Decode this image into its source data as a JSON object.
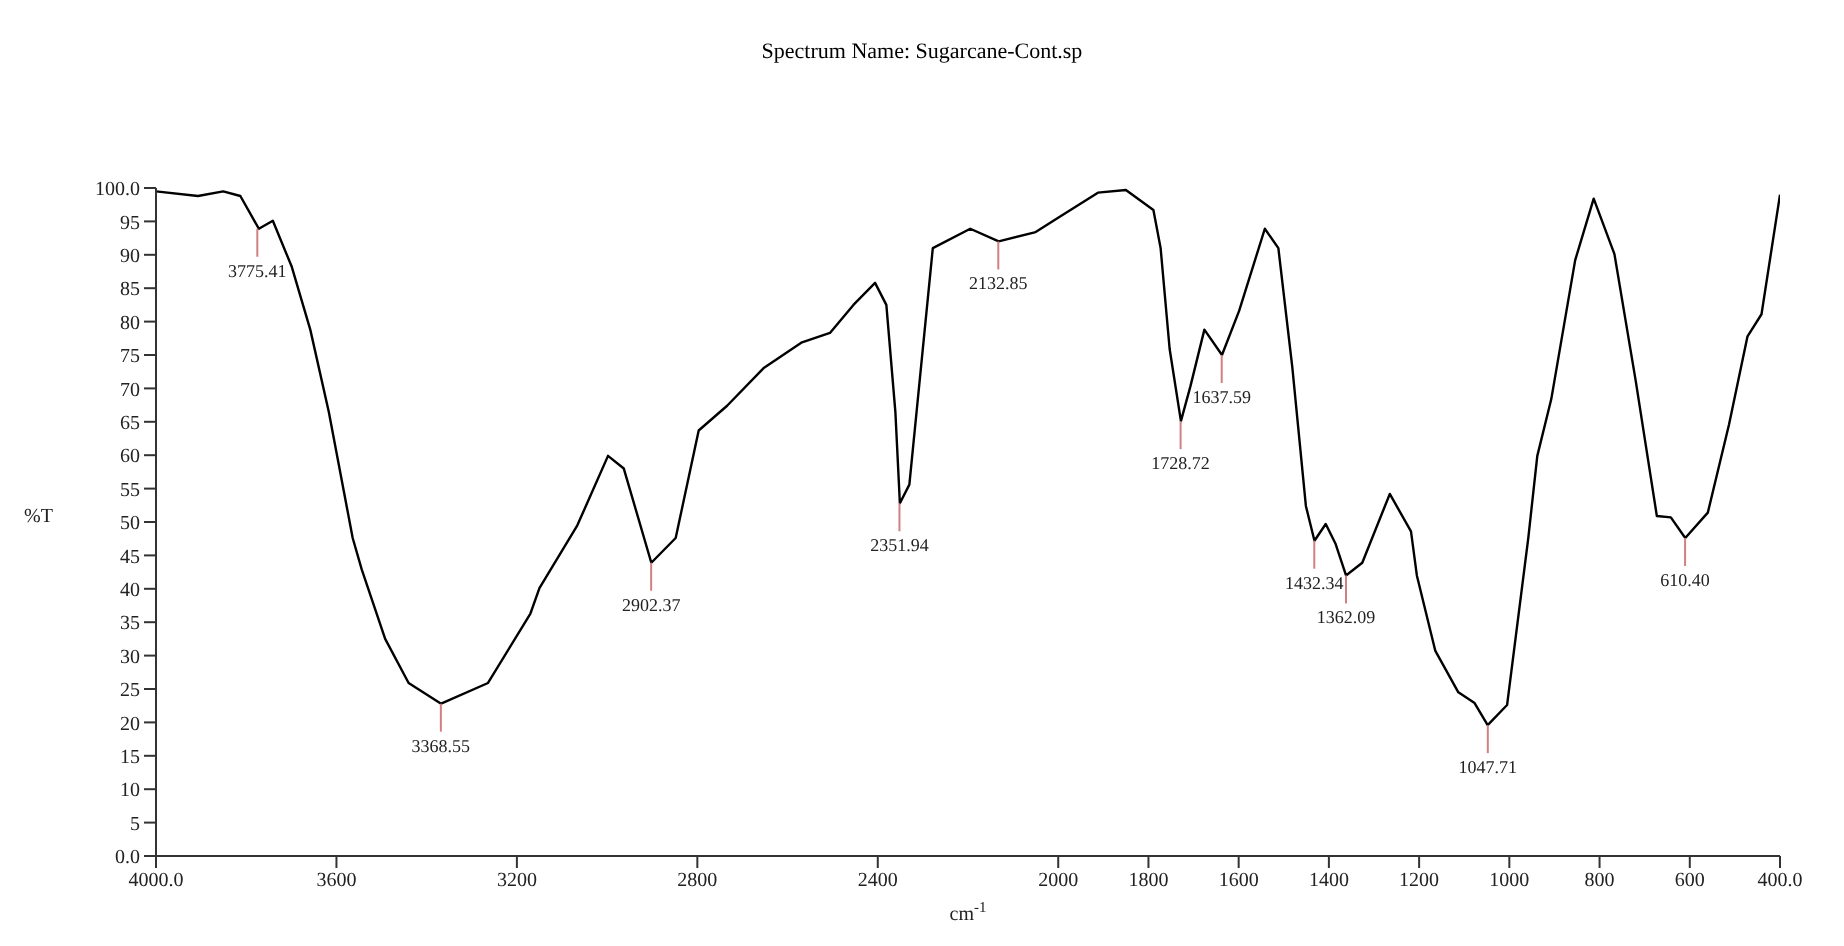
{
  "chart_data": {
    "type": "line",
    "title": "Spectrum Name: Sugarcane-Cont.sp",
    "xlabel": "cm$^{-1}$",
    "ylabel": "%T",
    "x": [
      4000,
      3907,
      3851,
      3813,
      3772,
      3741,
      3699,
      3658,
      3617,
      3564,
      3544,
      3492,
      3440,
      3368,
      3264,
      3170,
      3150,
      3066,
      2998,
      2963,
      2902,
      2848,
      2797,
      2734,
      2652,
      2568,
      2506,
      2454,
      2406,
      2381,
      2361,
      2351,
      2330,
      2278,
      2195,
      2132,
      2050,
      1994,
      1912,
      1850,
      1789,
      1773,
      1753,
      1728,
      1707,
      1676,
      1637,
      1599,
      1542,
      1512,
      1481,
      1451,
      1432,
      1407,
      1385,
      1362,
      1326,
      1265,
      1218,
      1205,
      1164,
      1113,
      1077,
      1048,
      1005,
      958,
      938,
      907,
      854,
      813,
      767,
      720,
      673,
      642,
      610,
      560,
      513,
      472,
      441,
      400
    ],
    "series": [
      {
        "color": "#000000",
        "values": [
          99.5,
          98.8,
          99.5,
          98.8,
          93.9,
          95.1,
          88.2,
          78.8,
          66.5,
          47.6,
          42.9,
          32.5,
          25.9,
          22.8,
          25.9,
          36.3,
          40.1,
          49.5,
          59.9,
          58.0,
          43.9,
          47.6,
          63.7,
          67.4,
          73.1,
          76.9,
          78.3,
          82.5,
          85.8,
          82.5,
          66.5,
          52.8,
          55.6,
          91.0,
          93.9,
          92.0,
          93.4,
          95.8,
          99.3,
          99.7,
          96.7,
          91.0,
          75.9,
          65.1,
          70.3,
          78.8,
          75.0,
          81.6,
          93.9,
          91.0,
          73.1,
          52.4,
          47.2,
          49.7,
          46.7,
          42.0,
          43.9,
          54.2,
          48.6,
          42.0,
          30.7,
          24.5,
          22.9,
          19.6,
          22.6,
          47.6,
          59.9,
          68.4,
          89.2,
          98.4,
          90.1,
          71.2,
          50.9,
          50.7,
          47.6,
          51.4,
          64.6,
          77.8,
          81.1,
          99.0
        ]
      }
    ],
    "xlim": [
      4000,
      400
    ],
    "xticks": [
      {
        "value": 4000,
        "label": "4000.0"
      },
      3600,
      3200,
      2800,
      2400,
      2000,
      1800,
      1600,
      1400,
      1200,
      1000,
      800,
      600,
      {
        "value": 400,
        "label": "400.0"
      }
    ],
    "ylim": [
      0,
      100
    ],
    "yticks": [
      {
        "value": 0,
        "label": "0.0"
      },
      5,
      10,
      15,
      20,
      25,
      30,
      35,
      40,
      45,
      50,
      55,
      60,
      65,
      70,
      75,
      80,
      85,
      90,
      95,
      {
        "value": 100,
        "label": "100.0"
      }
    ],
    "annotations": [
      {
        "text": "3775.41",
        "x": 3775.41,
        "y": 93.9
      },
      {
        "text": "3368.55",
        "x": 3368.55,
        "y": 22.8
      },
      {
        "text": "2902.37",
        "x": 2902.37,
        "y": 43.9
      },
      {
        "text": "2351.94",
        "x": 2351.94,
        "y": 52.8
      },
      {
        "text": "2132.85",
        "x": 2132.85,
        "y": 92.0
      },
      {
        "text": "1728.72",
        "x": 1728.72,
        "y": 65.1
      },
      {
        "text": "1637.59",
        "x": 1637.59,
        "y": 75.0
      },
      {
        "text": "1432.34",
        "x": 1432.34,
        "y": 47.2
      },
      {
        "text": "1362.09",
        "x": 1362.09,
        "y": 42.0
      },
      {
        "text": "1047.71",
        "x": 1047.71,
        "y": 19.6
      },
      {
        "text": "610.40",
        "x": 610.4,
        "y": 47.6
      }
    ],
    "marker": "none",
    "line_style": "solid"
  }
}
